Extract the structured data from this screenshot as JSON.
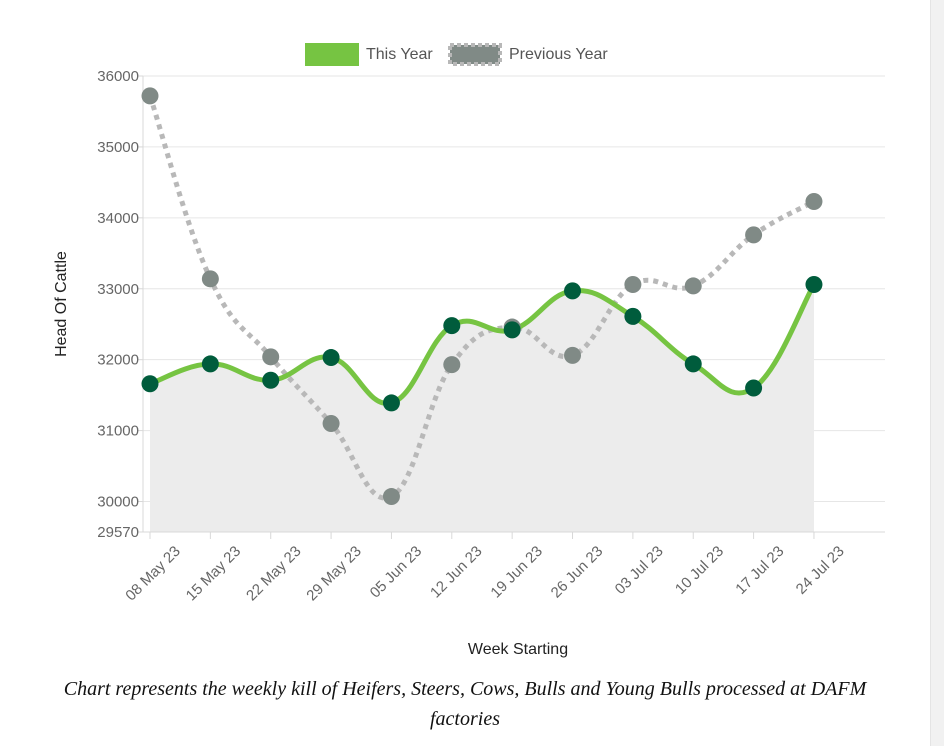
{
  "chart_data": {
    "type": "line",
    "categories": [
      "08 May 23",
      "15 May 23",
      "22 May 23",
      "29 May 23",
      "05 Jun 23",
      "12 Jun 23",
      "19 Jun 23",
      "26 Jun 23",
      "03 Jul 23",
      "10 Jul 23",
      "17 Jul 23",
      "24 Jul 23"
    ],
    "series": [
      {
        "name": "This Year",
        "color": "#76c442",
        "marker_color": "#005c3c",
        "style": "solid",
        "area_fill": "#ececec",
        "values": [
          31660,
          31940,
          31710,
          32030,
          31390,
          32480,
          32420,
          32970,
          32610,
          31940,
          31600,
          33060
        ]
      },
      {
        "name": "Previous Year",
        "color": "#b8b8b8",
        "marker_color": "#808a86",
        "style": "dotted",
        "values": [
          35720,
          33140,
          32040,
          31100,
          30070,
          31930,
          32460,
          32060,
          33060,
          33040,
          33760,
          34230
        ]
      }
    ],
    "xlabel": "Week Starting",
    "ylabel": "Head Of Cattle",
    "ylim": [
      29570,
      36000
    ],
    "y_ticks": [
      29570,
      30000,
      31000,
      32000,
      33000,
      34000,
      35000,
      36000
    ],
    "grid": true,
    "legend_position": "top"
  },
  "caption": "Chart represents the weekly kill of Heifers, Steers, Cows, Bulls and Young Bulls processed at DAFM factories"
}
